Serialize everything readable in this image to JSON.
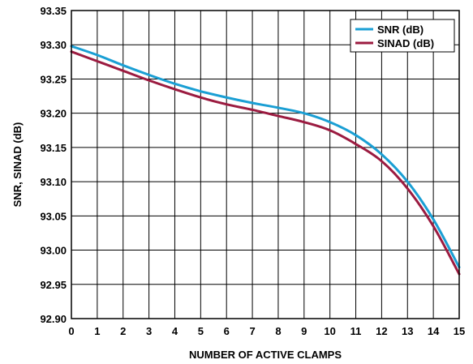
{
  "chart_data": {
    "type": "line",
    "title": "",
    "xlabel": "NUMBER OF ACTIVE CLAMPS",
    "ylabel": "SNR, SINAD (dB)",
    "xlim": [
      0,
      15
    ],
    "ylim": [
      92.9,
      93.35
    ],
    "x_ticks": [
      "0",
      "1",
      "2",
      "3",
      "4",
      "5",
      "6",
      "7",
      "8",
      "9",
      "10",
      "11",
      "12",
      "13",
      "14",
      "15"
    ],
    "y_ticks": [
      "93.35",
      "93.30",
      "93.25",
      "93.20",
      "93.15",
      "93.10",
      "93.05",
      "93.00",
      "92.95",
      "92.90"
    ],
    "grid": true,
    "legend_position": "top-right",
    "series": [
      {
        "name": "SNR (dB)",
        "color": "#1a9fd4",
        "x": [
          0,
          1,
          2,
          3,
          4,
          5,
          6,
          7,
          8,
          9,
          10,
          11,
          12,
          13,
          14,
          15
        ],
        "y": [
          93.298,
          93.285,
          93.27,
          93.256,
          93.243,
          93.232,
          93.223,
          93.215,
          93.208,
          93.2,
          93.187,
          93.168,
          93.14,
          93.1,
          93.045,
          92.975
        ]
      },
      {
        "name": "SINAD (dB)",
        "color": "#9b1b40",
        "x": [
          0,
          1,
          2,
          3,
          4,
          5,
          6,
          7,
          8,
          9,
          10,
          11,
          12,
          13,
          14,
          15
        ],
        "y": [
          93.29,
          93.276,
          93.262,
          93.248,
          93.235,
          93.223,
          93.213,
          93.205,
          93.196,
          93.187,
          93.175,
          93.155,
          93.13,
          93.09,
          93.035,
          92.965
        ]
      }
    ]
  }
}
